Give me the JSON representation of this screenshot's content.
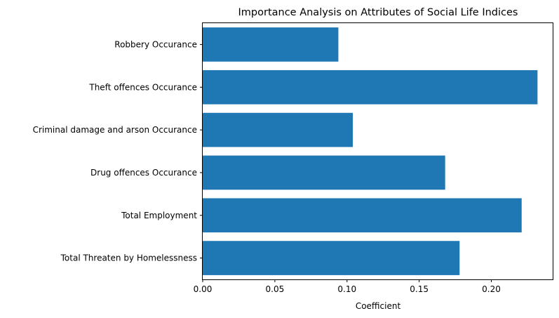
{
  "chart_data": {
    "type": "bar",
    "orientation": "horizontal",
    "title": "Importance Analysis on Attributes of Social Life Indices",
    "xlabel": "Coefficient",
    "ylabel": "",
    "categories": [
      "Robbery Occurance",
      "Theft offences Occurance",
      "Criminal damage and arson Occurance",
      "Drug offences Occurance",
      "Total Employment",
      "Total Threaten by Homelessness"
    ],
    "values": [
      0.094,
      0.232,
      0.104,
      0.168,
      0.221,
      0.178
    ],
    "xlim": [
      0,
      0.243
    ],
    "xticks": [
      0.0,
      0.05,
      0.1,
      0.15,
      0.2
    ],
    "xtick_labels": [
      "0.00",
      "0.05",
      "0.10",
      "0.15",
      "0.20"
    ],
    "bar_color": "#1f77b4",
    "grid": false,
    "legend": "none"
  }
}
